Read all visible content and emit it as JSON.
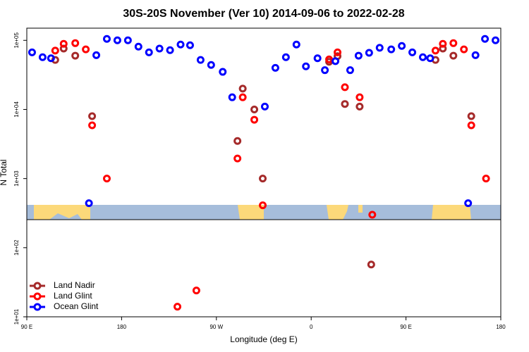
{
  "chart_data": {
    "type": "scatter",
    "title": "30S-20S November (Ver 10)   2014-09-06 to 2022-02-28",
    "x_label": "Longitude (deg E)",
    "y_label": "N Total",
    "y_scale": "log",
    "xlim": [
      90,
      540
    ],
    "ylim": [
      10,
      150000
    ],
    "xticks": [
      {
        "value": 90,
        "label": "90 E"
      },
      180,
      {
        "value": 270,
        "label": "90 W"
      },
      {
        "value": 360,
        "label": "0"
      },
      {
        "value": 450,
        "label": "90 E"
      },
      {
        "value": 540,
        "label": "180"
      }
    ],
    "yticks": [
      {
        "value": 10,
        "label": "1e+01"
      },
      {
        "value": 100,
        "label": "1e+02"
      },
      {
        "value": 1000,
        "label": "1e+03"
      },
      {
        "value": 10000,
        "label": "1e+04"
      },
      {
        "value": 100000,
        "label": "1e+05"
      }
    ],
    "legend": "bottom-left",
    "series": [
      {
        "name": "Land Nadir",
        "color": "#a52a2a",
        "x": [
          117,
          125,
          136,
          152,
          290,
          295,
          306,
          314,
          377,
          385,
          392,
          406,
          417,
          478,
          485,
          495,
          512
        ],
        "values": [
          52000,
          76000,
          60000,
          8000,
          3500,
          20000,
          10000,
          1000,
          49000,
          59000,
          12000,
          11000,
          57,
          52000,
          76000,
          60000,
          8000
        ]
      },
      {
        "name": "Land Glint",
        "color": "#ff0000",
        "x": [
          117,
          125,
          136,
          146,
          152,
          166,
          233,
          251,
          290,
          295,
          306,
          314,
          377,
          385,
          392,
          406,
          418,
          478,
          485,
          495,
          505,
          512,
          526
        ],
        "values": [
          71000,
          89000,
          91000,
          74000,
          5900,
          1000,
          14,
          24,
          1950,
          15000,
          7100,
          410,
          53000,
          67000,
          21000,
          15000,
          300,
          71000,
          89000,
          91000,
          74000,
          5900,
          1000
        ]
      },
      {
        "name": "Ocean Glint",
        "color": "#0000ff",
        "x": [
          95,
          105,
          113,
          149,
          156,
          166,
          176,
          186,
          196,
          206,
          216,
          226,
          236,
          245,
          255,
          265,
          276,
          285,
          316,
          326,
          336,
          346,
          355,
          366,
          373,
          383,
          397,
          405,
          415,
          425,
          436,
          446,
          456,
          466,
          473,
          509,
          516,
          525,
          535
        ],
        "values": [
          67000,
          57000,
          55000,
          440,
          61000,
          105000,
          100000,
          100000,
          81000,
          67000,
          76000,
          72000,
          87000,
          85000,
          52000,
          44000,
          35000,
          15000,
          11000,
          40000,
          57000,
          87000,
          42000,
          55000,
          37000,
          50000,
          37000,
          60000,
          66000,
          78000,
          74000,
          83000,
          67000,
          57000,
          55000,
          440,
          61000,
          105000,
          100000
        ]
      }
    ]
  }
}
